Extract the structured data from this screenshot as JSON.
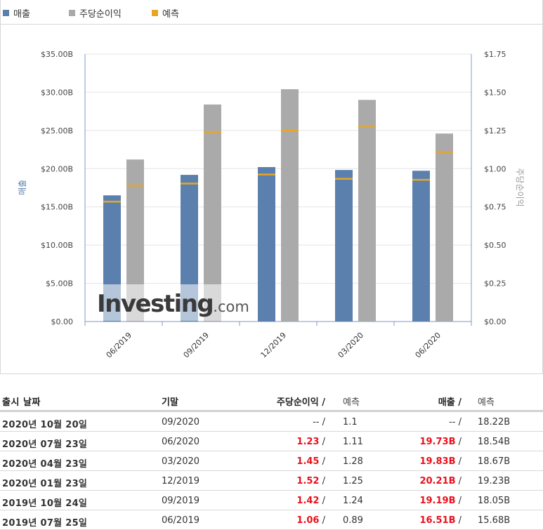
{
  "legend": [
    {
      "label": "매출",
      "color": "#5b80ad"
    },
    {
      "label": "주당순이익",
      "color": "#aaaaaa"
    },
    {
      "label": "예측",
      "color": "#e9a623"
    }
  ],
  "colors": {
    "revenue": "#5b80ad",
    "eps": "#aaaaaa",
    "forecast": "#e9a623",
    "highlight": "#e8101c"
  },
  "watermark": {
    "brand": "Investing",
    "suffix": ".com"
  },
  "chart_data": {
    "type": "bar",
    "categories": [
      "06/2019",
      "09/2019",
      "12/2019",
      "03/2020",
      "06/2020"
    ],
    "series": [
      {
        "name": "매출",
        "axis": "left",
        "values": [
          16.51,
          19.19,
          20.21,
          19.83,
          19.73
        ],
        "forecast": [
          15.68,
          18.05,
          19.23,
          18.67,
          18.54
        ]
      },
      {
        "name": "주당순이익",
        "axis": "right",
        "values": [
          1.06,
          1.42,
          1.52,
          1.45,
          1.23
        ],
        "forecast": [
          0.89,
          1.24,
          1.25,
          1.28,
          1.11
        ]
      }
    ],
    "ylabel_left": "매출",
    "ylabel_right": "주당순이익",
    "ylim_left": [
      0,
      35
    ],
    "ylim_right": [
      0,
      1.75
    ],
    "left_ticks": [
      "$0.00",
      "$5.00B",
      "$10.00B",
      "$15.00B",
      "$20.00B",
      "$25.00B",
      "$30.00B",
      "$35.00B"
    ],
    "right_ticks": [
      "$0.00",
      "$0.25",
      "$0.50",
      "$0.75",
      "$1.00",
      "$1.25",
      "$1.50",
      "$1.75"
    ],
    "grid": true,
    "legend_position": "top-left"
  },
  "table": {
    "headers": {
      "date": "출시 날짜",
      "period": "기말",
      "eps": "주당순이익",
      "eps_forecast": "예측",
      "revenue": "매출",
      "revenue_forecast": "예측"
    },
    "rows": [
      {
        "date": "2020년 10월 20일",
        "period": "09/2020",
        "eps": "--",
        "eps_forecast": "1.1",
        "revenue": "--",
        "revenue_forecast": "18.22B"
      },
      {
        "date": "2020년 07월 23일",
        "period": "06/2020",
        "eps": "1.23",
        "eps_forecast": "1.11",
        "revenue": "19.73B",
        "revenue_forecast": "18.54B"
      },
      {
        "date": "2020년 04월 23일",
        "period": "03/2020",
        "eps": "1.45",
        "eps_forecast": "1.28",
        "revenue": "19.83B",
        "revenue_forecast": "18.67B"
      },
      {
        "date": "2020년 01월 23일",
        "period": "12/2019",
        "eps": "1.52",
        "eps_forecast": "1.25",
        "revenue": "20.21B",
        "revenue_forecast": "19.23B"
      },
      {
        "date": "2019년 10월 24일",
        "period": "09/2019",
        "eps": "1.42",
        "eps_forecast": "1.24",
        "revenue": "19.19B",
        "revenue_forecast": "18.05B"
      },
      {
        "date": "2019년 07월 25일",
        "period": "06/2019",
        "eps": "1.06",
        "eps_forecast": "0.89",
        "revenue": "16.51B",
        "revenue_forecast": "15.68B"
      }
    ]
  }
}
